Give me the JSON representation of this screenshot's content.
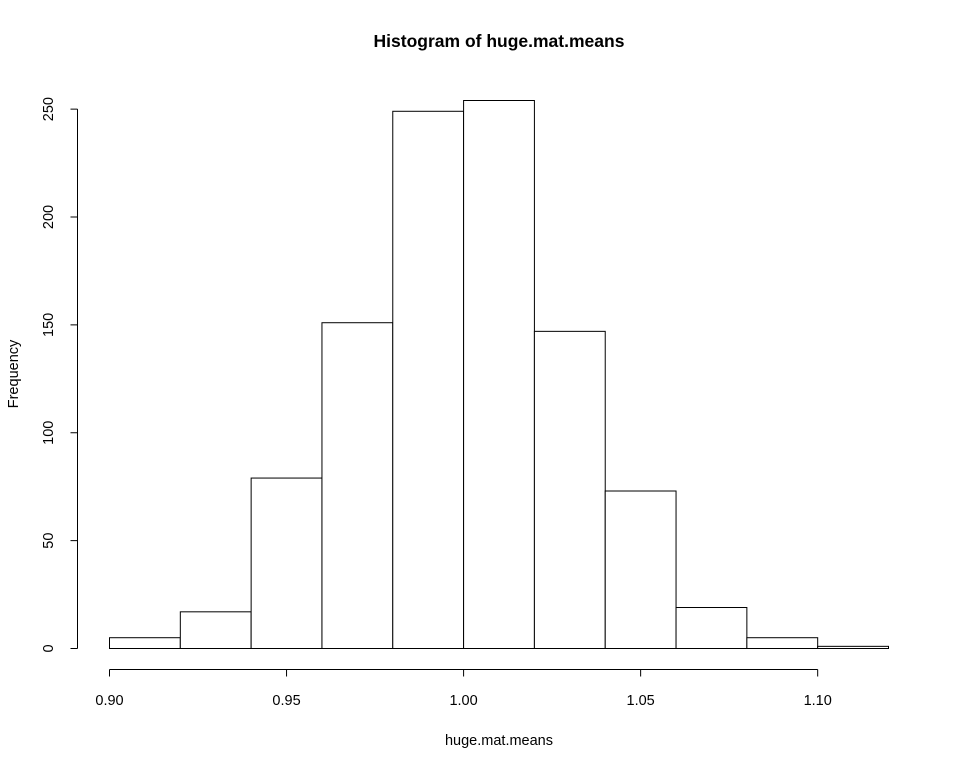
{
  "chart_data": {
    "type": "bar",
    "title": "Histogram of huge.mat.means",
    "xlabel": "huge.mat.means",
    "ylabel": "Frequency",
    "bins": [
      {
        "x0": 0.9,
        "x1": 0.92,
        "count": 5
      },
      {
        "x0": 0.92,
        "x1": 0.94,
        "count": 17
      },
      {
        "x0": 0.94,
        "x1": 0.96,
        "count": 79
      },
      {
        "x0": 0.96,
        "x1": 0.98,
        "count": 151
      },
      {
        "x0": 0.98,
        "x1": 1.0,
        "count": 249
      },
      {
        "x0": 1.0,
        "x1": 1.02,
        "count": 254
      },
      {
        "x0": 1.02,
        "x1": 1.04,
        "count": 147
      },
      {
        "x0": 1.04,
        "x1": 1.06,
        "count": 73
      },
      {
        "x0": 1.06,
        "x1": 1.08,
        "count": 19
      },
      {
        "x0": 1.08,
        "x1": 1.1,
        "count": 5
      },
      {
        "x0": 1.1,
        "x1": 1.12,
        "count": 1
      }
    ],
    "x_ticks": [
      0.9,
      0.95,
      1.0,
      1.05,
      1.1
    ],
    "x_tick_labels": [
      "0.90",
      "0.95",
      "1.00",
      "1.05",
      "1.10"
    ],
    "y_ticks": [
      0,
      50,
      100,
      150,
      200,
      250
    ],
    "y_tick_labels": [
      "0",
      "50",
      "100",
      "150",
      "200",
      "250"
    ],
    "xlim": [
      0.9,
      1.12
    ],
    "ylim": [
      0,
      254
    ],
    "grid": false,
    "colors": {
      "bar_fill": "#ffffff",
      "bar_stroke": "#000000",
      "background": "#ffffff"
    }
  }
}
